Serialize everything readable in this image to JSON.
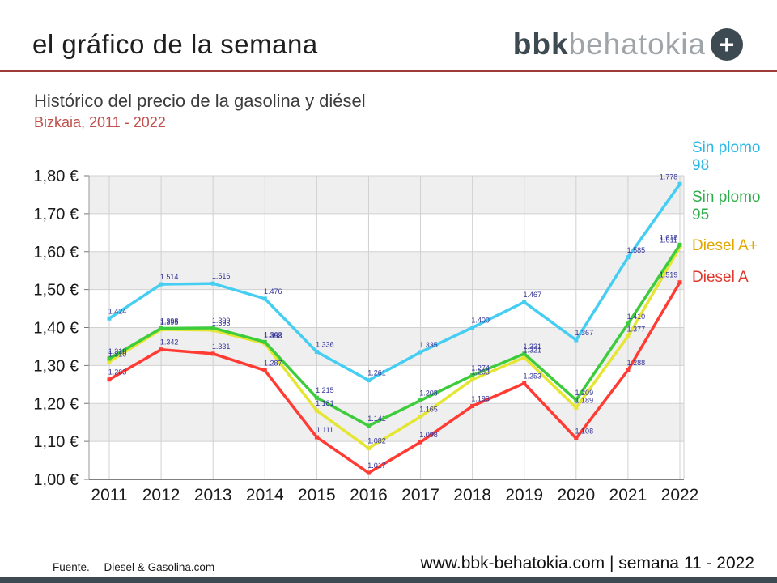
{
  "header": {
    "title": "el gráfico de la semana",
    "logo": {
      "bold": "bbk",
      "light": "behatokia",
      "plus": "+"
    }
  },
  "subtitle": {
    "line1": "Histórico del precio de la gasolina y diésel",
    "line2": "Bizkaia, 2011 - 2022"
  },
  "footer": {
    "source_label": "Fuente.",
    "source_name": "Diesel & Gasolina.com",
    "website": "www.bbk-behatokia.com | semana 11 - 2022"
  },
  "colors": {
    "divider_red": "#9e3a38",
    "subtitle_red": "#c0504d",
    "logo_dark": "#3e4a52",
    "logo_light": "#9ea4a8",
    "band_gray": "#efefef",
    "gridline": "#d0d0d0",
    "axis_line": "#555555",
    "value_label": "#333399",
    "bottom_bar": "#3e4a52"
  },
  "chart_data": {
    "type": "line",
    "title": "Histórico del precio de la gasolina y diésel",
    "subtitle": "Bizkaia, 2011 - 2022",
    "x": [
      2011,
      2012,
      2013,
      2014,
      2015,
      2016,
      2017,
      2018,
      2019,
      2020,
      2021,
      2022
    ],
    "ylim": [
      1.0,
      1.8
    ],
    "ytick_step": 0.1,
    "ytick_labels": [
      "1,00 €",
      "1,10 €",
      "1,20 €",
      "1,30 €",
      "1,40 €",
      "1,50 €",
      "1,60 €",
      "1,70 €",
      "1,80 €"
    ],
    "grid": true,
    "banded_background": true,
    "legend_position": "right",
    "value_label_decimals": 3,
    "value_label_color": "#333399",
    "series": [
      {
        "name": "Sin plomo 98",
        "legend_lines": [
          "Sin plomo",
          "98"
        ],
        "color": "#45cdf2",
        "legend_color": "#2bb8e6",
        "values": [
          1.424,
          1.514,
          1.516,
          1.476,
          1.336,
          1.261,
          1.335,
          1.4,
          1.467,
          1.367,
          1.585,
          1.778
        ]
      },
      {
        "name": "Sin plomo 95",
        "legend_lines": [
          "Sin plomo",
          "95"
        ],
        "color": "#3ccc3c",
        "legend_color": "#2ead4b",
        "values": [
          1.318,
          1.398,
          1.399,
          1.362,
          1.215,
          1.141,
          1.208,
          1.274,
          1.331,
          1.209,
          1.41,
          1.618
        ]
      },
      {
        "name": "Diesel A+",
        "legend_lines": [
          "Diesel A+"
        ],
        "color": "#e5e534",
        "legend_color": "#e0a800",
        "values": [
          1.31,
          1.395,
          1.393,
          1.358,
          1.181,
          1.082,
          1.165,
          1.263,
          1.321,
          1.189,
          1.377,
          1.611
        ]
      },
      {
        "name": "Diesel A",
        "legend_lines": [
          "Diesel A"
        ],
        "color": "#ff3b33",
        "legend_color": "#de3a2e",
        "values": [
          1.263,
          1.342,
          1.331,
          1.287,
          1.111,
          1.017,
          1.098,
          1.193,
          1.253,
          1.108,
          1.288,
          1.519
        ]
      }
    ]
  }
}
